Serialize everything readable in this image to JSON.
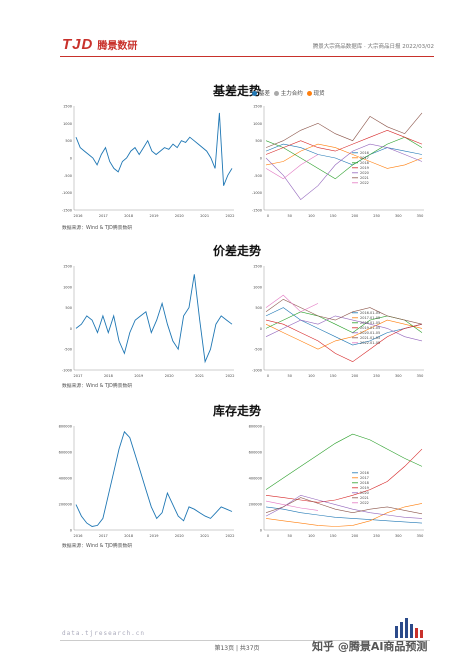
{
  "header": {
    "logo_mark": "TJD",
    "logo_text": "腾景数研",
    "subtitle": "腾景大宗商品数据库 · 大宗商品日报",
    "date": "2022/03/02"
  },
  "sections": {
    "basis": {
      "title": "基差走势",
      "legend": [
        "基差",
        "主力合约",
        "现货"
      ]
    },
    "spread": {
      "title": "价差走势"
    },
    "inventory": {
      "title": "库存走势"
    }
  },
  "source_note": "数据来源：Wind & TJD腾景数研",
  "footer": {
    "url": "data.tjresearch.cn",
    "page_label": "第13页 | 共37页",
    "watermark": "知乎 @腾景AI商品预测"
  },
  "colors": {
    "brand": "#c8312b",
    "line_primary": "#1f77b4",
    "legend_dot_1": "#1f77b4",
    "legend_dot_2": "#aaaaaa",
    "legend_dot_3": "#ff7f0e"
  },
  "chart_data": [
    {
      "id": "basis-ts",
      "type": "line",
      "x_ticks": [
        "2016",
        "2017",
        "2018",
        "2019",
        "2020",
        "2021",
        "2022"
      ],
      "y_ticks": [
        "1500",
        "1000",
        "500",
        "0",
        "-500",
        "-1000",
        "-1500"
      ],
      "ylim": [
        -1500,
        1500
      ],
      "series": [
        {
          "values": [
            600,
            300,
            200,
            100,
            0,
            -200,
            100,
            300,
            -100,
            -300,
            -400,
            -100,
            0,
            200,
            300,
            100,
            300,
            500,
            200,
            100,
            200,
            300,
            250,
            400,
            300,
            500,
            450,
            600,
            500,
            400,
            300,
            200,
            0,
            -300,
            1300,
            -800,
            -500,
            -300
          ]
        }
      ]
    },
    {
      "id": "basis-seasonal",
      "type": "line",
      "x_ticks": [
        "0",
        "50",
        "100",
        "150",
        "200",
        "250",
        "300",
        "350"
      ],
      "y_ticks": [
        "1500",
        "1000",
        "500",
        "0",
        "-500",
        "-1000",
        "-1500"
      ],
      "ylim": [
        -1500,
        1500
      ],
      "legend": [
        "2016",
        "2017",
        "2018",
        "2019",
        "2020",
        "2021",
        "2022"
      ],
      "series": [
        {
          "name": "2016",
          "values": [
            200,
            400,
            300,
            100,
            0,
            -200,
            100,
            300,
            200,
            100
          ]
        },
        {
          "name": "2017",
          "values": [
            -200,
            -100,
            200,
            400,
            300,
            100,
            -100,
            -300,
            -200,
            0
          ]
        },
        {
          "name": "2018",
          "values": [
            500,
            300,
            0,
            -300,
            -600,
            -200,
            100,
            400,
            600,
            300
          ]
        },
        {
          "name": "2019",
          "values": [
            100,
            300,
            500,
            300,
            200,
            400,
            600,
            800,
            600,
            400
          ]
        },
        {
          "name": "2020",
          "values": [
            0,
            -500,
            -1200,
            -800,
            -200,
            200,
            400,
            300,
            100,
            -100
          ]
        },
        {
          "name": "2021",
          "values": [
            300,
            500,
            800,
            1000,
            700,
            500,
            1200,
            900,
            700,
            1300
          ]
        },
        {
          "name": "2022",
          "values": [
            -300,
            -600,
            -200,
            100
          ]
        }
      ]
    },
    {
      "id": "spread-ts",
      "type": "line",
      "x_ticks": [
        "2017",
        "2018",
        "2019",
        "2020",
        "2021",
        "2022"
      ],
      "y_ticks": [
        "1500",
        "1000",
        "500",
        "0",
        "-500",
        "-1000"
      ],
      "ylim": [
        -1000,
        1500
      ],
      "series": [
        {
          "values": [
            0,
            100,
            300,
            200,
            -100,
            300,
            -100,
            300,
            -300,
            -600,
            -100,
            200,
            300,
            400,
            -100,
            200,
            600,
            100,
            -300,
            -500,
            300,
            500,
            1300,
            200,
            -800,
            -500,
            100,
            300,
            200,
            100
          ]
        }
      ]
    },
    {
      "id": "spread-seasonal",
      "type": "line",
      "x_ticks": [
        "0",
        "50",
        "100",
        "150",
        "200",
        "250",
        "300",
        "350"
      ],
      "y_ticks": [
        "1500",
        "1000",
        "500",
        "0",
        "-500",
        "-1000"
      ],
      "ylim": [
        -1000,
        1500
      ],
      "legend": [
        "2016.01-05",
        "2017.01-05",
        "2018.01-05",
        "2019.01-05",
        "2020.01-05",
        "2021.01-05",
        "2022.01-05"
      ],
      "series": [
        {
          "name": "2016.01-05",
          "values": [
            300,
            500,
            200,
            0,
            -200,
            -400,
            -300,
            -100,
            0,
            100
          ]
        },
        {
          "name": "2017.01-05",
          "values": [
            100,
            -100,
            -300,
            -500,
            -300,
            -200,
            0,
            200,
            100,
            0
          ]
        },
        {
          "name": "2018.01-05",
          "values": [
            0,
            200,
            400,
            300,
            100,
            -100,
            200,
            300,
            200,
            -100
          ]
        },
        {
          "name": "2019.01-05",
          "values": [
            200,
            100,
            -100,
            -300,
            -600,
            -800,
            -500,
            -200,
            0,
            100
          ]
        },
        {
          "name": "2020.01-05",
          "values": [
            -200,
            0,
            200,
            100,
            300,
            200,
            100,
            0,
            -200,
            -300
          ]
        },
        {
          "name": "2021.01-05",
          "values": [
            400,
            700,
            500,
            300,
            200,
            400,
            500,
            300,
            200,
            100
          ]
        },
        {
          "name": "2022.01-05",
          "values": [
            500,
            800,
            400,
            600
          ]
        }
      ]
    },
    {
      "id": "inventory-ts",
      "type": "line",
      "x_ticks": [
        "2016",
        "2017",
        "2018",
        "2019",
        "2020",
        "2021",
        "2022"
      ],
      "y_ticks": [
        "800000",
        "600000",
        "400000",
        "200000",
        "0"
      ],
      "ylim": [
        0,
        900000
      ],
      "series": [
        {
          "values": [
            220000,
            120000,
            60000,
            30000,
            40000,
            100000,
            300000,
            500000,
            700000,
            850000,
            800000,
            650000,
            500000,
            350000,
            200000,
            100000,
            150000,
            320000,
            220000,
            120000,
            80000,
            200000,
            180000,
            150000,
            120000,
            100000,
            150000,
            200000,
            180000,
            160000
          ]
        }
      ]
    },
    {
      "id": "inventory-seasonal",
      "type": "line",
      "x_ticks": [
        "0",
        "50",
        "100",
        "150",
        "200",
        "250",
        "300",
        "350"
      ],
      "y_ticks": [
        "800000",
        "600000",
        "400000",
        "200000",
        "0"
      ],
      "ylim": [
        0,
        900000
      ],
      "legend": [
        "2016",
        "2017",
        "2018",
        "2019",
        "2020",
        "2021",
        "2022"
      ],
      "series": [
        {
          "name": "2016",
          "values": [
            200000,
            180000,
            150000,
            130000,
            110000,
            100000,
            90000,
            80000,
            70000,
            60000
          ]
        },
        {
          "name": "2017",
          "values": [
            100000,
            80000,
            60000,
            40000,
            30000,
            40000,
            80000,
            150000,
            200000,
            230000
          ]
        },
        {
          "name": "2018",
          "values": [
            350000,
            450000,
            550000,
            650000,
            750000,
            830000,
            780000,
            700000,
            620000,
            550000
          ]
        },
        {
          "name": "2019",
          "values": [
            300000,
            280000,
            260000,
            240000,
            260000,
            300000,
            350000,
            420000,
            550000,
            700000
          ]
        },
        {
          "name": "2020",
          "values": [
            120000,
            200000,
            300000,
            260000,
            220000,
            180000,
            150000,
            130000,
            110000,
            100000
          ]
        },
        {
          "name": "2021",
          "values": [
            150000,
            200000,
            280000,
            230000,
            180000,
            150000,
            180000,
            200000,
            170000,
            140000
          ]
        },
        {
          "name": "2022",
          "values": [
            250000,
            220000,
            190000,
            170000
          ]
        }
      ]
    }
  ]
}
